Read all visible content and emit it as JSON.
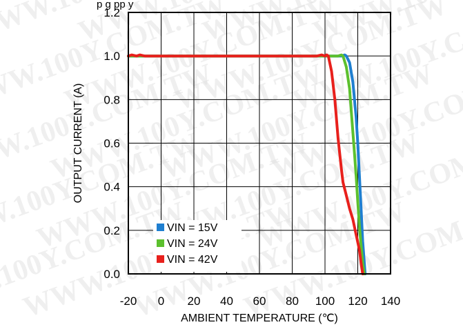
{
  "chart_data": {
    "type": "line",
    "title": "",
    "xlabel": "AMBIENT TEMPERATURE (℃)",
    "ylabel": "OUTPUT CURRENT (A)",
    "xlim": [
      -20,
      140
    ],
    "ylim": [
      0.0,
      1.2
    ],
    "x_ticks": [
      "-20",
      "0",
      "20",
      "40",
      "60",
      "80",
      "100",
      "120",
      "140"
    ],
    "y_ticks": [
      "0.0",
      "0.2",
      "0.4",
      "0.6",
      "0.8",
      "1.0",
      "1.2"
    ],
    "grid": true,
    "legend_position": "bottom-left",
    "series": [
      {
        "name": "VIN = 15V",
        "color": "#1f7fd0",
        "points": [
          [
            -20,
            1.0
          ],
          [
            -15,
            1.0
          ],
          [
            0,
            1.0
          ],
          [
            40,
            1.0
          ],
          [
            80,
            1.0
          ],
          [
            100,
            1.0
          ],
          [
            110,
            1.0
          ],
          [
            112,
            1.005
          ],
          [
            113,
            1.0
          ],
          [
            115,
            0.97
          ],
          [
            117,
            0.88
          ],
          [
            119,
            0.72
          ],
          [
            120,
            0.6
          ],
          [
            121,
            0.45
          ],
          [
            122,
            0.3
          ],
          [
            123,
            0.15
          ],
          [
            124,
            0.05
          ],
          [
            124.5,
            0.0
          ]
        ]
      },
      {
        "name": "VIN = 24V",
        "color": "#5cc02e",
        "points": [
          [
            -20,
            1.0
          ],
          [
            0,
            1.0
          ],
          [
            40,
            1.0
          ],
          [
            80,
            1.0
          ],
          [
            100,
            1.0
          ],
          [
            108,
            1.0
          ],
          [
            110,
            1.005
          ],
          [
            111,
            1.0
          ],
          [
            113,
            0.95
          ],
          [
            115,
            0.85
          ],
          [
            116,
            0.75
          ],
          [
            117,
            0.65
          ],
          [
            118,
            0.55
          ],
          [
            119,
            0.45
          ],
          [
            120,
            0.33
          ],
          [
            121,
            0.22
          ],
          [
            122,
            0.13
          ],
          [
            123,
            0.05
          ],
          [
            124,
            0.0
          ]
        ]
      },
      {
        "name": "VIN = 42V",
        "color": "#e8201c",
        "points": [
          [
            -20,
            1.0
          ],
          [
            -18,
            1.005
          ],
          [
            -15,
            1.0
          ],
          [
            -13,
            1.005
          ],
          [
            -10,
            1.0
          ],
          [
            0,
            1.0
          ],
          [
            40,
            1.0
          ],
          [
            80,
            1.0
          ],
          [
            95,
            1.0
          ],
          [
            98,
            1.005
          ],
          [
            100,
            1.0
          ],
          [
            101,
            1.005
          ],
          [
            102,
            1.0
          ],
          [
            104,
            0.93
          ],
          [
            106,
            0.8
          ],
          [
            108,
            0.62
          ],
          [
            109,
            0.55
          ],
          [
            110,
            0.48
          ],
          [
            111,
            0.42
          ],
          [
            113,
            0.36
          ],
          [
            115,
            0.3
          ],
          [
            117,
            0.25
          ],
          [
            119,
            0.18
          ],
          [
            121,
            0.11
          ],
          [
            122,
            0.05
          ],
          [
            123,
            0.0
          ]
        ]
      }
    ]
  },
  "watermark": "WWW.100Y.COM.TW",
  "header_fragment": "p                                                       g                  pp y"
}
